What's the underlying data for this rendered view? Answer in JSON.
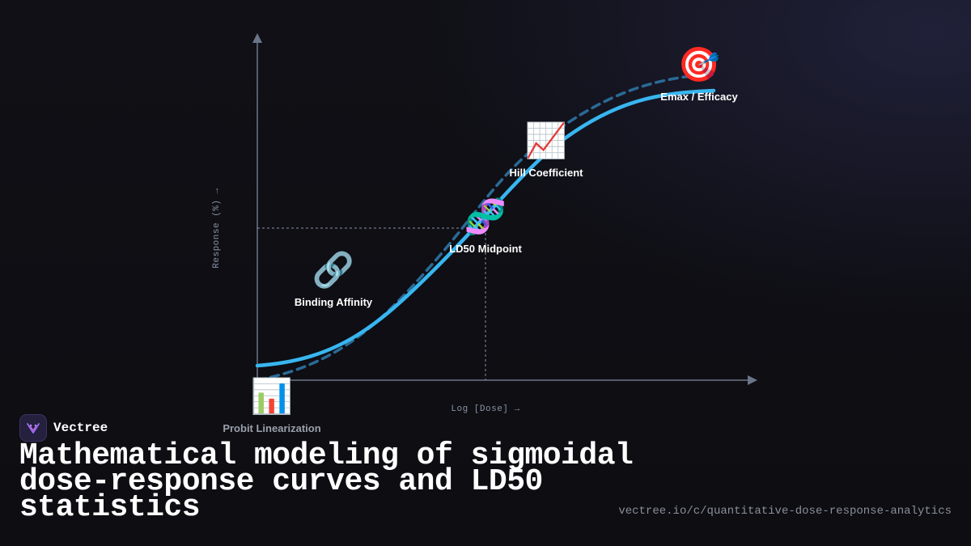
{
  "diagram": {
    "x_axis_label": "Log [Dose] →",
    "y_axis_label": "Response (%) →",
    "nodes": [
      {
        "icon": "🎯",
        "icon_name": "target-icon",
        "label": "Emax / Efficacy"
      },
      {
        "icon": "📈",
        "icon_name": "chart-increasing-icon",
        "label": "Hill Coefficient"
      },
      {
        "icon": "🧬",
        "icon_name": "dna-icon",
        "label": "LD50 Midpoint"
      },
      {
        "icon": "🔗",
        "icon_name": "link-icon",
        "label": "Binding Affinity"
      },
      {
        "icon": "📊",
        "icon_name": "bar-chart-icon",
        "label": "Probit Linearization"
      }
    ],
    "colors": {
      "primary_curve": "#38b6f0",
      "secondary_curve": "#2a6a96",
      "axis": "#6b7588"
    }
  },
  "brand": {
    "name": "Vectree"
  },
  "title": "Mathematical modeling of sigmoidal dose-response curves and LD50 statistics",
  "url": "vectree.io/c/quantitative-dose-response-analytics"
}
